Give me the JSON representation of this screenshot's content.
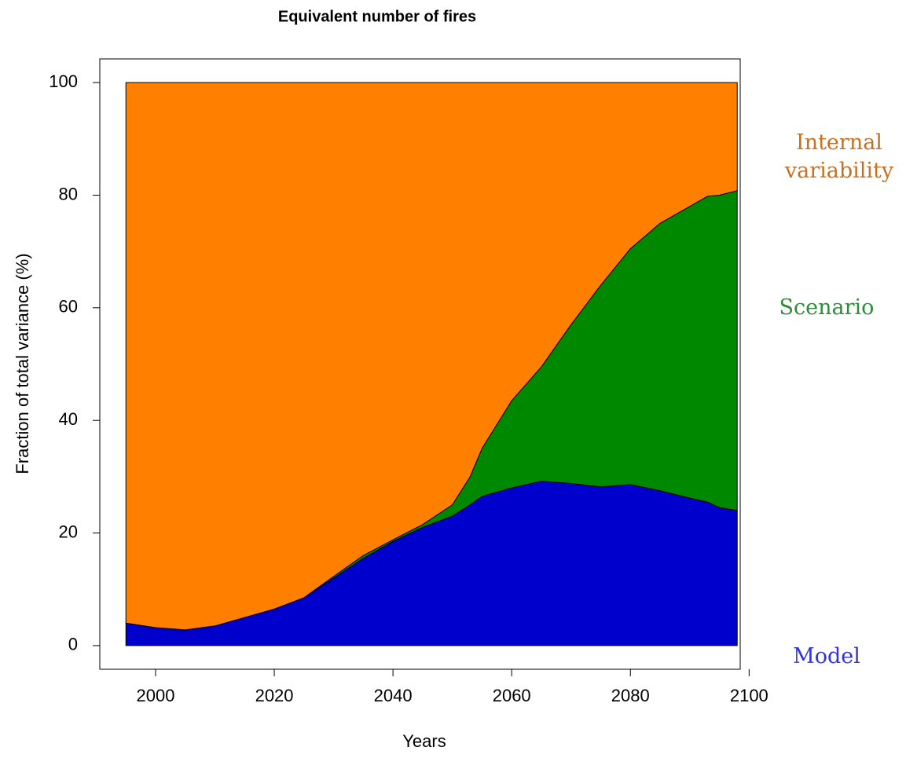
{
  "chart_data": {
    "type": "stacked-area",
    "title": "Equivalent number of fires",
    "x_label": "Years",
    "y_label": "Fraction of total variance (%)",
    "x": [
      1995,
      2000,
      2005,
      2010,
      2015,
      2020,
      2025,
      2030,
      2035,
      2040,
      2045,
      2050,
      2053,
      2055,
      2060,
      2065,
      2070,
      2075,
      2080,
      2085,
      2090,
      2093,
      2095,
      2098
    ],
    "series": [
      {
        "name": "Model",
        "color": "#0000cc",
        "label_color": "#3333dd",
        "values": [
          4,
          3.2,
          2.8,
          3.5,
          5,
          6.5,
          8.5,
          12,
          15.5,
          18.5,
          21,
          23,
          25,
          26.5,
          28,
          29.2,
          28.8,
          28.2,
          28.6,
          27.5,
          26.2,
          25.5,
          24.5,
          24
        ]
      },
      {
        "name": "Scenario",
        "color": "#008800",
        "label_color": "#2e8b3a",
        "values": [
          0,
          0,
          0,
          0,
          0,
          0,
          0,
          0.3,
          0.5,
          0.3,
          0.5,
          2,
          5,
          8.5,
          15.5,
          20.3,
          28.2,
          35.8,
          41.9,
          47.5,
          51.8,
          54.3,
          55.5,
          56.8
        ]
      },
      {
        "name": "Internal variability",
        "color": "#ff8000",
        "label_color": "#c87020",
        "values": [
          96,
          96.8,
          97.2,
          96.5,
          95,
          93.5,
          91.5,
          87.7,
          84,
          81.2,
          78.5,
          75,
          70,
          65,
          56.5,
          50.5,
          43,
          36,
          29.5,
          25,
          22,
          20.2,
          20,
          19.2
        ]
      }
    ],
    "xlim": [
      1990.6,
      2098.5
    ],
    "xticks": [
      2000,
      2020,
      2040,
      2060,
      2080,
      2100
    ],
    "ylim": [
      -4.2,
      104.2
    ],
    "yticks": [
      0,
      20,
      40,
      60,
      80,
      100
    ]
  }
}
